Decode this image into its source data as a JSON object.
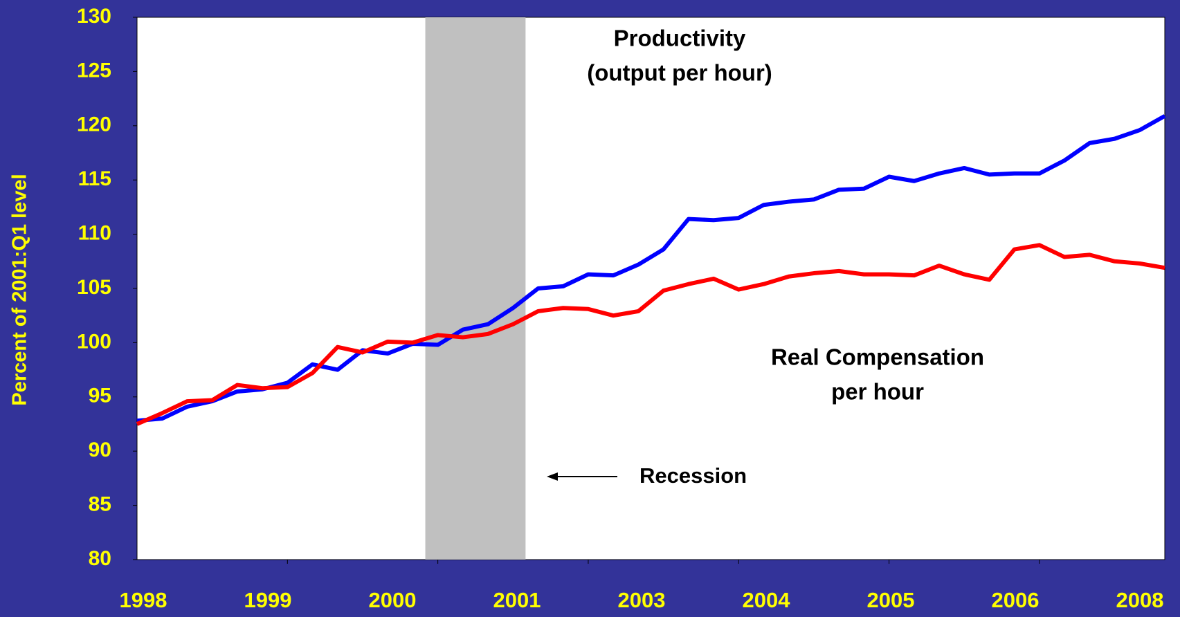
{
  "chart_data": {
    "type": "line",
    "y_axis_label": "Percent of 2001:Q1 level",
    "x_labels": [
      "1998",
      "1999",
      "2000",
      "2001",
      "2003",
      "2004",
      "2005",
      "2006",
      "2008"
    ],
    "ylim": [
      80,
      130
    ],
    "yticks": [
      80,
      85,
      90,
      95,
      100,
      105,
      110,
      115,
      120,
      125,
      130
    ],
    "series": [
      {
        "name": "Productivity",
        "color": "#0000ff",
        "values": [
          92.8,
          93.0,
          94.1,
          94.6,
          95.5,
          95.7,
          96.3,
          98.0,
          97.5,
          99.3,
          99.0,
          99.9,
          99.8,
          101.2,
          101.7,
          103.2,
          105.0,
          105.2,
          106.3,
          106.2,
          107.2,
          108.6,
          111.4,
          111.3,
          111.5,
          112.7,
          113.0,
          113.2,
          114.1,
          114.2,
          115.3,
          114.9,
          115.6,
          116.1,
          115.5,
          115.6,
          115.6,
          116.8,
          118.4,
          118.8,
          119.6,
          120.9
        ]
      },
      {
        "name": "Real Compensation",
        "color": "#ff0000",
        "values": [
          92.5,
          93.5,
          94.6,
          94.7,
          96.1,
          95.8,
          95.9,
          97.2,
          99.6,
          99.1,
          100.1,
          100.0,
          100.7,
          100.5,
          100.8,
          101.7,
          102.9,
          103.2,
          103.1,
          102.5,
          102.9,
          104.8,
          105.4,
          105.9,
          104.9,
          105.4,
          106.1,
          106.4,
          106.6,
          106.3,
          106.3,
          106.2,
          107.1,
          106.3,
          105.8,
          108.6,
          109.0,
          107.9,
          108.1,
          107.5,
          107.3,
          106.9
        ]
      }
    ],
    "recession": {
      "label": "Recession",
      "start": 11.5,
      "end": 15.5,
      "color": "#c0c0c0"
    },
    "annotations": [
      {
        "lines": [
          "Productivity",
          "(output per hour)"
        ]
      },
      {
        "lines": [
          "Real Compensation",
          "per hour"
        ]
      }
    ]
  }
}
